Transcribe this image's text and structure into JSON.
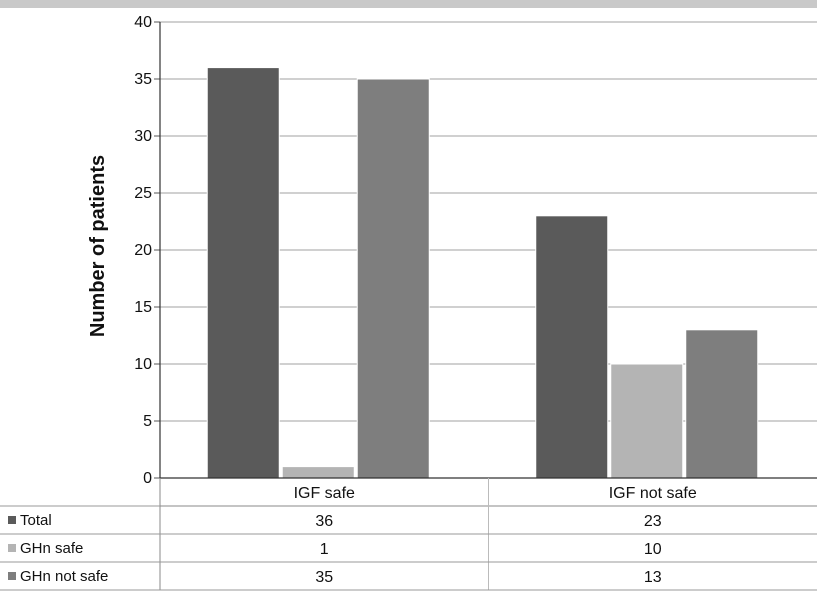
{
  "chart_data": {
    "type": "bar",
    "title": "",
    "xlabel": "",
    "ylabel": "Number of patients",
    "ylim": [
      0,
      40
    ],
    "yticks": [
      0,
      5,
      10,
      15,
      20,
      25,
      30,
      35,
      40
    ],
    "grid": true,
    "legend": "data-table",
    "categories": [
      "IGF safe",
      "IGF not safe"
    ],
    "series": [
      {
        "name": "Total",
        "values": [
          36,
          23
        ],
        "color": "#5a5a5a"
      },
      {
        "name": "GHn safe",
        "values": [
          1,
          10
        ],
        "color": "#b4b4b4"
      },
      {
        "name": "GHn not safe",
        "values": [
          35,
          13
        ],
        "color": "#7e7e7e"
      }
    ],
    "data_table": [
      {
        "series": "Total",
        "cells": [
          "36",
          "23"
        ]
      },
      {
        "series": "GHn safe",
        "cells": [
          "1",
          "10"
        ]
      },
      {
        "series": "GHn not safe",
        "cells": [
          "35",
          "13"
        ]
      }
    ]
  }
}
